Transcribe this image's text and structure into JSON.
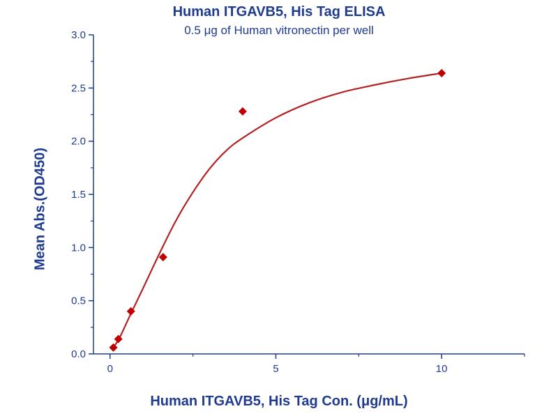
{
  "chart_data": {
    "type": "scatter",
    "title": "Human ITGAVB5, His Tag ELISA",
    "subtitle": "0.5 μg of Human vitronectin per well",
    "xlabel": "Human ITGAVB5, His Tag Con. (μg/mL)",
    "ylabel": "Mean Abs.(OD450)",
    "xlim": [
      -0.5,
      12.5
    ],
    "ylim": [
      0,
      3.0
    ],
    "xticks": [
      0,
      5,
      10
    ],
    "yticks": [
      0.0,
      0.5,
      1.0,
      1.5,
      2.0,
      2.5,
      3.0
    ],
    "xtick_labels": [
      "0",
      "5",
      "10"
    ],
    "ytick_labels": [
      "0.0",
      "0.5",
      "1.0",
      "1.5",
      "2.0",
      "2.5",
      "3.0"
    ],
    "grid": false,
    "colors": {
      "marker": "#c00000",
      "curve": "#b22222",
      "axis": "#1f3b8f"
    },
    "series": [
      {
        "marker": "diamond",
        "x": [
          0.1,
          0.25,
          0.63,
          1.6,
          4.0,
          10.0
        ],
        "y": [
          0.06,
          0.14,
          0.4,
          0.91,
          2.28,
          2.64
        ]
      }
    ],
    "fit_curve": {
      "x": [
        0.1,
        0.3,
        0.6,
        1.0,
        1.5,
        2.0,
        2.5,
        3.0,
        3.5,
        4.0,
        5.0,
        6.0,
        7.0,
        8.0,
        9.0,
        10.0
      ],
      "y": [
        0.06,
        0.16,
        0.36,
        0.62,
        0.95,
        1.26,
        1.52,
        1.74,
        1.91,
        2.03,
        2.22,
        2.36,
        2.46,
        2.53,
        2.59,
        2.64
      ]
    }
  }
}
